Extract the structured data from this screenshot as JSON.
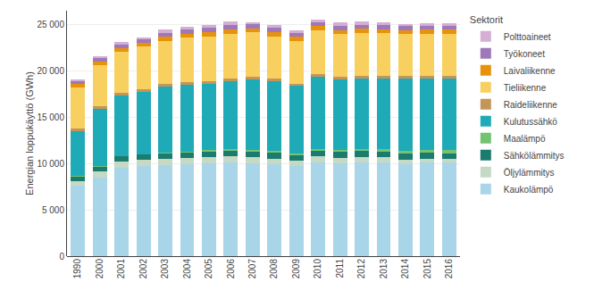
{
  "chart_data": {
    "type": "bar",
    "stacked": true,
    "categories": [
      "1990",
      "2000",
      "2001",
      "2002",
      "2003",
      "2004",
      "2005",
      "2006",
      "2007",
      "2008",
      "2009",
      "2010",
      "2011",
      "2012",
      "2013",
      "2014",
      "2015",
      "2016"
    ],
    "series": [
      {
        "name": "Kaukolämpö",
        "color": "#a8d5e8",
        "values": [
          7600,
          8500,
          9500,
          9700,
          9800,
          9900,
          10000,
          10100,
          10000,
          9900,
          9700,
          10100,
          10000,
          10100,
          10100,
          9900,
          10100,
          10100
        ]
      },
      {
        "name": "Öljylämmitys",
        "color": "#c5d9c5",
        "values": [
          500,
          700,
          700,
          700,
          700,
          700,
          700,
          700,
          700,
          650,
          600,
          650,
          600,
          600,
          550,
          500,
          450,
          400
        ]
      },
      {
        "name": "Sähkölämmitys",
        "color": "#1b7b6e",
        "values": [
          550,
          500,
          600,
          600,
          650,
          650,
          650,
          650,
          650,
          650,
          600,
          650,
          650,
          650,
          650,
          650,
          600,
          600
        ]
      },
      {
        "name": "Maalämpö",
        "color": "#72c472",
        "values": [
          10,
          20,
          20,
          30,
          40,
          60,
          80,
          100,
          120,
          150,
          160,
          200,
          220,
          260,
          290,
          320,
          360,
          400
        ]
      },
      {
        "name": "Kulutussähkö",
        "color": "#1faab8",
        "values": [
          4800,
          6200,
          6500,
          6700,
          7100,
          7200,
          7200,
          7300,
          7600,
          7500,
          7300,
          7800,
          7600,
          7600,
          7600,
          7800,
          7700,
          7700
        ]
      },
      {
        "name": "Raideliikenne",
        "color": "#c4955a",
        "values": [
          280,
          280,
          280,
          280,
          280,
          280,
          280,
          280,
          280,
          280,
          280,
          280,
          280,
          280,
          280,
          280,
          280,
          280
        ]
      },
      {
        "name": "Tieliikenne",
        "color": "#f7d060",
        "values": [
          4500,
          4400,
          4500,
          4600,
          4700,
          4800,
          4800,
          4900,
          4800,
          4600,
          4600,
          4700,
          4600,
          4600,
          4600,
          4500,
          4500,
          4500
        ]
      },
      {
        "name": "Laivaliikenne",
        "color": "#e8920a",
        "values": [
          350,
          400,
          400,
          400,
          400,
          450,
          500,
          450,
          450,
          450,
          450,
          450,
          450,
          450,
          450,
          450,
          450,
          450
        ]
      },
      {
        "name": "Työkoneet",
        "color": "#9e78b8",
        "values": [
          300,
          350,
          380,
          420,
          430,
          460,
          470,
          470,
          470,
          460,
          420,
          460,
          460,
          460,
          460,
          460,
          430,
          430
        ]
      },
      {
        "name": "Polttoaineet",
        "color": "#d4aed4",
        "values": [
          100,
          200,
          200,
          200,
          350,
          300,
          250,
          350,
          200,
          300,
          250,
          250,
          350,
          350,
          300,
          200,
          300,
          300
        ]
      }
    ],
    "ylabel": "Energian loppukäyttö (GWh)",
    "legend_title": "Sektorit",
    "legend": "right",
    "ylim": [
      0,
      26500
    ],
    "yticks": [
      0,
      {
        "value": 5000,
        "label": "5 000"
      },
      {
        "value": 10000,
        "label": "10 000"
      },
      {
        "value": 15000,
        "label": "15 000"
      },
      {
        "value": 20000,
        "label": "20 000"
      },
      {
        "value": 25000,
        "label": "25 000"
      }
    ],
    "grid": true
  }
}
